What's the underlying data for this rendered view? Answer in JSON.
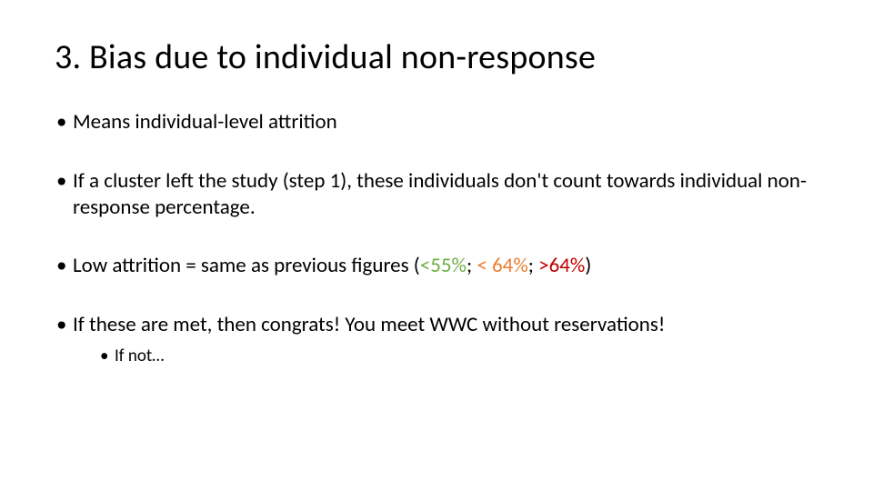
{
  "slide": {
    "background_color": "#ffffff",
    "title": {
      "text": "3. Bias due to individual non-response",
      "fontsize": 38,
      "font_weight": 400,
      "color": "#000000"
    },
    "bullets": [
      {
        "text": "Means individual-level attrition"
      },
      {
        "text": "If a cluster left the study (step 1), these individuals don't count towards individual non-response percentage."
      },
      {
        "prefix": "Low attrition = same as previous figures (",
        "thresholds": [
          {
            "text": "<55%",
            "color": "#70ad47",
            "class": "green"
          },
          {
            "sep": "; "
          },
          {
            "text": "< 64%",
            "color": "#ed7d31",
            "class": "orange"
          },
          {
            "sep": "; "
          },
          {
            "text": ">64%",
            "color": "#c00000",
            "class": "red"
          }
        ],
        "suffix": ")"
      },
      {
        "text": "If these are met, then congrats! You meet WWC without reservations!",
        "sub": [
          {
            "text": "If not…"
          }
        ]
      }
    ],
    "body_fontsize": 23,
    "sub_fontsize": 19,
    "bullet_color": "#000000",
    "font_family": "Calibri"
  }
}
